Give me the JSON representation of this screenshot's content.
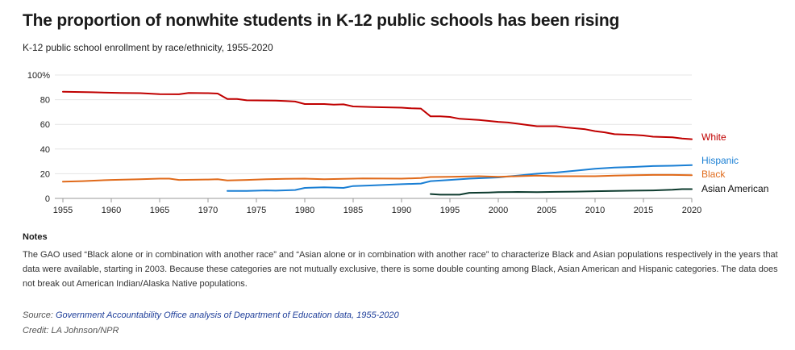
{
  "header": {
    "title": "The proportion of nonwhite students in K-12 public schools has been rising",
    "subtitle": "K-12 public school enrollment by race/ethnicity, 1955-2020"
  },
  "chart_data": {
    "type": "line",
    "title": "",
    "xlabel": "",
    "ylabel": "",
    "xlim": [
      1955,
      2020
    ],
    "ylim": [
      0,
      100
    ],
    "x_ticks": [
      1955,
      1960,
      1965,
      1970,
      1975,
      1980,
      1985,
      1990,
      1995,
      2000,
      2005,
      2010,
      2015,
      2020
    ],
    "y_ticks": [
      0,
      20,
      40,
      60,
      80,
      100
    ],
    "y_tick_labels": [
      "0",
      "20",
      "40",
      "60",
      "80",
      "100%"
    ],
    "grid": true,
    "legend": "direct labels at line ends (right)",
    "series": [
      {
        "name": "White",
        "color": "#c00000",
        "points": [
          [
            1955,
            86.5
          ],
          [
            1958,
            86
          ],
          [
            1961,
            85.5
          ],
          [
            1963,
            85.3
          ],
          [
            1965,
            84.5
          ],
          [
            1967,
            84.4
          ],
          [
            1968,
            85.5
          ],
          [
            1970,
            85.3
          ],
          [
            1971,
            85
          ],
          [
            1972,
            80.5
          ],
          [
            1973,
            80.5
          ],
          [
            1974,
            79.5
          ],
          [
            1977,
            79.2
          ],
          [
            1978,
            78.9
          ],
          [
            1979,
            78.5
          ],
          [
            1980,
            76.5
          ],
          [
            1982,
            76.5
          ],
          [
            1983,
            76
          ],
          [
            1984,
            76.2
          ],
          [
            1985,
            74.5
          ],
          [
            1987,
            74
          ],
          [
            1990,
            73.5
          ],
          [
            1991,
            73
          ],
          [
            1992,
            72.8
          ],
          [
            1993,
            66.5
          ],
          [
            1994,
            66.5
          ],
          [
            1995,
            66
          ],
          [
            1996,
            64.5
          ],
          [
            1998,
            63.5
          ],
          [
            2000,
            62
          ],
          [
            2001,
            61.5
          ],
          [
            2002,
            60.5
          ],
          [
            2003,
            59.5
          ],
          [
            2004,
            58.5
          ],
          [
            2006,
            58.5
          ],
          [
            2007,
            57.5
          ],
          [
            2009,
            56
          ],
          [
            2010,
            54.5
          ],
          [
            2011,
            53.5
          ],
          [
            2012,
            52
          ],
          [
            2014,
            51.5
          ],
          [
            2015,
            51
          ],
          [
            2016,
            50
          ],
          [
            2018,
            49.5
          ],
          [
            2019,
            48.5
          ],
          [
            2020,
            48
          ]
        ]
      },
      {
        "name": "Hispanic",
        "color": "#1a7fd4",
        "points": [
          [
            1972,
            6
          ],
          [
            1974,
            6
          ],
          [
            1976,
            6.5
          ],
          [
            1977,
            6.3
          ],
          [
            1979,
            6.8
          ],
          [
            1980,
            8.5
          ],
          [
            1982,
            9
          ],
          [
            1984,
            8.5
          ],
          [
            1985,
            10
          ],
          [
            1987,
            10.5
          ],
          [
            1990,
            11.5
          ],
          [
            1992,
            12
          ],
          [
            1993,
            14
          ],
          [
            1995,
            15
          ],
          [
            1997,
            16
          ],
          [
            2000,
            17
          ],
          [
            2002,
            18.5
          ],
          [
            2004,
            20
          ],
          [
            2006,
            21
          ],
          [
            2008,
            22.5
          ],
          [
            2010,
            24
          ],
          [
            2012,
            25
          ],
          [
            2014,
            25.5
          ],
          [
            2016,
            26.2
          ],
          [
            2018,
            26.5
          ],
          [
            2020,
            27
          ]
        ]
      },
      {
        "name": "Black",
        "color": "#e06a1a",
        "points": [
          [
            1955,
            13.5
          ],
          [
            1957,
            14
          ],
          [
            1960,
            15
          ],
          [
            1963,
            15.5
          ],
          [
            1965,
            16
          ],
          [
            1966,
            16
          ],
          [
            1967,
            15
          ],
          [
            1970,
            15.3
          ],
          [
            1971,
            15.5
          ],
          [
            1972,
            14.5
          ],
          [
            1974,
            15
          ],
          [
            1976,
            15.5
          ],
          [
            1978,
            15.8
          ],
          [
            1980,
            16
          ],
          [
            1982,
            15.5
          ],
          [
            1984,
            15.8
          ],
          [
            1986,
            16.2
          ],
          [
            1990,
            16
          ],
          [
            1992,
            16.5
          ],
          [
            1993,
            17.3
          ],
          [
            1995,
            17.5
          ],
          [
            1998,
            18
          ],
          [
            2000,
            17.5
          ],
          [
            2002,
            18
          ],
          [
            2004,
            18.5
          ],
          [
            2006,
            18
          ],
          [
            2008,
            18
          ],
          [
            2010,
            18
          ],
          [
            2012,
            18.5
          ],
          [
            2014,
            18.8
          ],
          [
            2016,
            19
          ],
          [
            2018,
            19
          ],
          [
            2020,
            18.8
          ]
        ]
      },
      {
        "name": "Asian American",
        "color": "#0d3b2e",
        "points": [
          [
            1993,
            3.5
          ],
          [
            1994,
            3
          ],
          [
            1996,
            3
          ],
          [
            1997,
            4.5
          ],
          [
            1999,
            4.8
          ],
          [
            2000,
            5
          ],
          [
            2002,
            5.2
          ],
          [
            2004,
            5
          ],
          [
            2006,
            5.3
          ],
          [
            2008,
            5.5
          ],
          [
            2010,
            5.8
          ],
          [
            2012,
            6
          ],
          [
            2014,
            6.3
          ],
          [
            2016,
            6.5
          ],
          [
            2018,
            7
          ],
          [
            2019,
            7.5
          ],
          [
            2020,
            7.5
          ]
        ]
      }
    ]
  },
  "notes": {
    "heading": "Notes",
    "text": "The GAO used “Black alone or in combination with another race” and “Asian alone or in combination with another race” to characterize Black and Asian populations respectively in the years that data were available, starting in 2003. Because these categories are not mutually exclusive, there is some double counting among Black, Asian American and Hispanic categories. The data does not break out American Indian/Alaska Native populations."
  },
  "footer": {
    "source_prefix": "Source: ",
    "source_link": "Government Accountability Office analysis of Department of Education data, 1955-2020",
    "credit": "Credit: LA Johnson/NPR"
  }
}
